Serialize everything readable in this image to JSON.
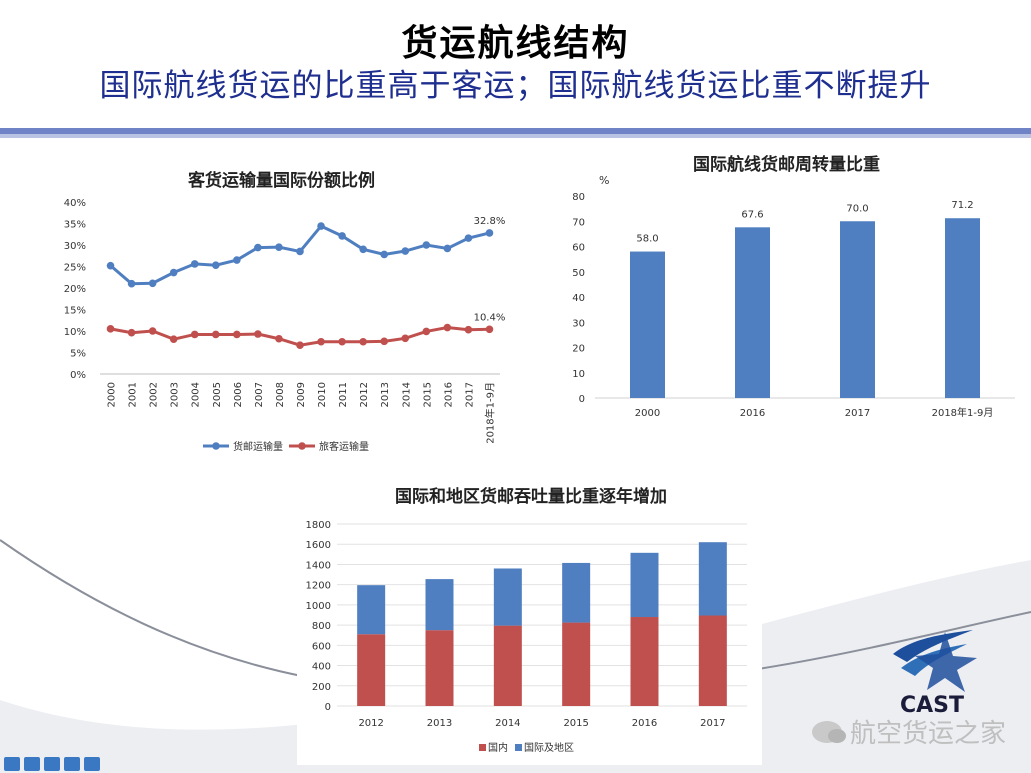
{
  "header": {
    "title": "货运航线结构",
    "subtitle": "国际航线货运的比重高于客运；国际航线货运比重不断提升"
  },
  "logo": {
    "text": "CAST"
  },
  "watermark": {
    "text": "航空货运之家"
  },
  "colors": {
    "blue": "#4f7fc0",
    "red": "#c0504d",
    "title_blue": "#1f2f8f",
    "band": "#6e84c6"
  },
  "statusbar": {
    "icons": [
      "microphone-icon",
      "keyboard-icon",
      "user-icon",
      "shirt-icon",
      "grid-icon"
    ]
  },
  "chart_data": [
    {
      "type": "line",
      "title": "客货运输量国际份额比例",
      "categories": [
        "2000",
        "2001",
        "2002",
        "2003",
        "2004",
        "2005",
        "2006",
        "2007",
        "2008",
        "2009",
        "2010",
        "2011",
        "2012",
        "2013",
        "2014",
        "2015",
        "2016",
        "2017",
        "2018年1-9月"
      ],
      "yticks": [
        "0%",
        "5%",
        "10%",
        "15%",
        "20%",
        "25%",
        "30%",
        "35%",
        "40%"
      ],
      "ylim": [
        0,
        40
      ],
      "series": [
        {
          "name": "货邮运输量",
          "color": "#4f7fc0",
          "values": [
            25.2,
            21,
            21.1,
            23.6,
            25.6,
            25.3,
            26.5,
            29.4,
            29.5,
            28.5,
            34.4,
            32.1,
            29,
            27.8,
            28.6,
            30,
            29.2,
            31.6,
            32.8
          ],
          "end_label": "32.8%"
        },
        {
          "name": "旅客运输量",
          "color": "#c0504d",
          "values": [
            10.5,
            9.6,
            10,
            8.1,
            9.2,
            9.2,
            9.2,
            9.3,
            8.2,
            6.7,
            7.5,
            7.5,
            7.5,
            7.6,
            8.3,
            9.9,
            10.8,
            10.3,
            10.4
          ],
          "end_label": "10.4%"
        }
      ],
      "legend": "bottom"
    },
    {
      "type": "bar",
      "title": "国际航线货邮周转量比重",
      "ylabel": "%",
      "categories": [
        "2000",
        "2016",
        "2017",
        "2018年1-9月"
      ],
      "values": [
        58.0,
        67.6,
        70.0,
        71.2
      ],
      "value_labels": [
        "58.0",
        "67.6",
        "70.0",
        "71.2"
      ],
      "yticks": [
        "0",
        "10",
        "20",
        "30",
        "40",
        "50",
        "60",
        "70",
        "80"
      ],
      "ylim": [
        0,
        80
      ],
      "color": "#4f7fc0"
    },
    {
      "type": "bar",
      "stacked": true,
      "title": "国际和地区货邮吞吐量比重逐年增加",
      "categories": [
        "2012",
        "2013",
        "2014",
        "2015",
        "2016",
        "2017"
      ],
      "yticks": [
        "0",
        "200",
        "400",
        "600",
        "800",
        "1000",
        "1200",
        "1400",
        "1600",
        "1800"
      ],
      "ylim": [
        0,
        1800
      ],
      "series": [
        {
          "name": "国内",
          "color": "#c0504d",
          "values": [
            710,
            750,
            795,
            825,
            880,
            895
          ]
        },
        {
          "name": "国际及地区",
          "color": "#4f7fc0",
          "values": [
            485,
            505,
            565,
            590,
            635,
            725
          ]
        }
      ],
      "legend": "bottom"
    }
  ]
}
